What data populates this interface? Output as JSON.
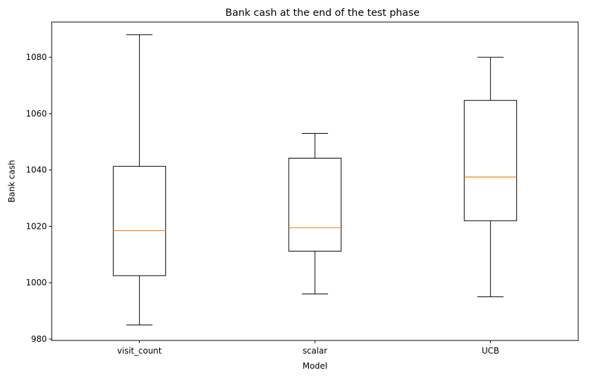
{
  "chart_data": {
    "type": "box",
    "title": "Bank cash at the end of the test phase",
    "xlabel": "Model",
    "ylabel": "Bank cash",
    "categories": [
      "visit_count",
      "scalar",
      "UCB"
    ],
    "boxes": [
      {
        "name": "visit_count",
        "whisker_low": 985,
        "q1": 1002.5,
        "median": 1018.5,
        "q3": 1041.3,
        "whisker_high": 1088
      },
      {
        "name": "scalar",
        "whisker_low": 996,
        "q1": 1011.2,
        "median": 1019.5,
        "q3": 1044.2,
        "whisker_high": 1053
      },
      {
        "name": "UCB",
        "whisker_low": 995,
        "q1": 1022,
        "median": 1037.5,
        "q3": 1064.7,
        "whisker_high": 1080
      }
    ],
    "yticks": [
      980,
      1000,
      1020,
      1040,
      1060,
      1080
    ],
    "ylim": [
      979.5,
      1092.5
    ],
    "grid": false,
    "colors": {
      "box": "#000000",
      "median": "#ff7f0e"
    }
  }
}
